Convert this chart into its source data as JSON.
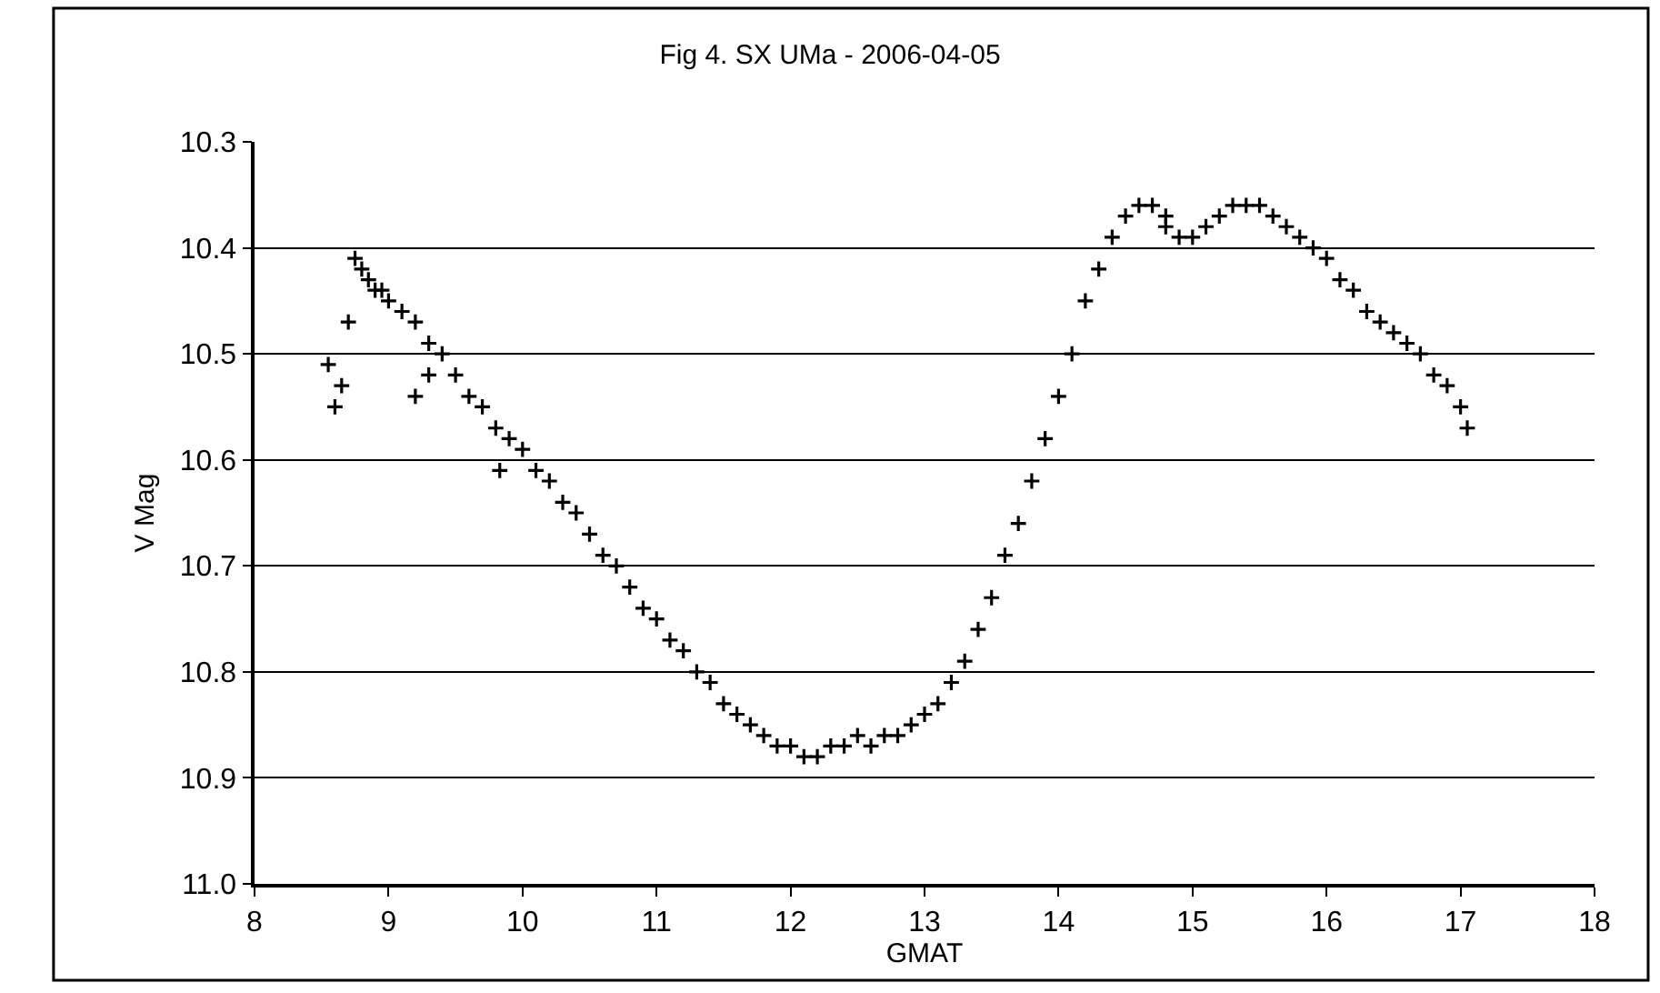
{
  "chart_data": {
    "type": "scatter",
    "title": "Fig 4. SX UMa - 2006-04-05",
    "xlabel": "GMAT",
    "ylabel": "V Mag",
    "x": [
      8.55,
      8.6,
      8.65,
      8.7,
      8.75,
      8.8,
      8.85,
      8.9,
      8.95,
      9.0,
      9.1,
      9.2,
      9.2,
      9.3,
      9.3,
      9.4,
      9.5,
      9.6,
      9.7,
      9.8,
      9.83,
      9.9,
      10.0,
      10.1,
      10.2,
      10.3,
      10.4,
      10.5,
      10.6,
      10.7,
      10.8,
      10.9,
      11.0,
      11.1,
      11.2,
      11.3,
      11.4,
      11.5,
      11.6,
      11.7,
      11.8,
      11.9,
      12.0,
      12.1,
      12.2,
      12.3,
      12.4,
      12.5,
      12.6,
      12.7,
      12.8,
      12.9,
      13.0,
      13.1,
      13.2,
      13.3,
      13.4,
      13.5,
      13.6,
      13.7,
      13.8,
      13.9,
      14.0,
      14.1,
      14.2,
      14.3,
      14.4,
      14.5,
      14.6,
      14.7,
      14.8,
      14.8,
      14.9,
      15.0,
      15.1,
      15.2,
      15.3,
      15.4,
      15.5,
      15.6,
      15.7,
      15.8,
      15.9,
      16.0,
      16.1,
      16.2,
      16.3,
      16.4,
      16.5,
      16.6,
      16.7,
      16.8,
      16.9,
      17.0,
      17.05
    ],
    "values": [
      10.51,
      10.55,
      10.53,
      10.47,
      10.41,
      10.42,
      10.43,
      10.44,
      10.44,
      10.45,
      10.46,
      10.47,
      10.54,
      10.49,
      10.52,
      10.5,
      10.52,
      10.54,
      10.55,
      10.57,
      10.61,
      10.58,
      10.59,
      10.61,
      10.62,
      10.64,
      10.65,
      10.67,
      10.69,
      10.7,
      10.72,
      10.74,
      10.75,
      10.77,
      10.78,
      10.8,
      10.81,
      10.83,
      10.84,
      10.85,
      10.86,
      10.87,
      10.87,
      10.88,
      10.88,
      10.87,
      10.87,
      10.86,
      10.87,
      10.86,
      10.86,
      10.85,
      10.84,
      10.83,
      10.81,
      10.79,
      10.76,
      10.73,
      10.69,
      10.66,
      10.62,
      10.58,
      10.54,
      10.5,
      10.45,
      10.42,
      10.39,
      10.37,
      10.36,
      10.36,
      10.37,
      10.38,
      10.39,
      10.39,
      10.38,
      10.37,
      10.36,
      10.36,
      10.36,
      10.37,
      10.38,
      10.39,
      10.4,
      10.41,
      10.43,
      10.44,
      10.46,
      10.47,
      10.48,
      10.49,
      10.5,
      10.52,
      10.53,
      10.55,
      10.57
    ],
    "color": "#000000",
    "marker": "cross",
    "xlim": [
      8,
      18
    ],
    "xticks": [
      8,
      9,
      10,
      11,
      12,
      13,
      14,
      15,
      16,
      17,
      18
    ],
    "ylim": [
      11.0,
      10.3
    ],
    "yticks": [
      10.3,
      10.4,
      10.5,
      10.6,
      10.7,
      10.8,
      10.9,
      {
        "value": 11.0,
        "label": "11.0"
      }
    ],
    "grid": "y"
  }
}
